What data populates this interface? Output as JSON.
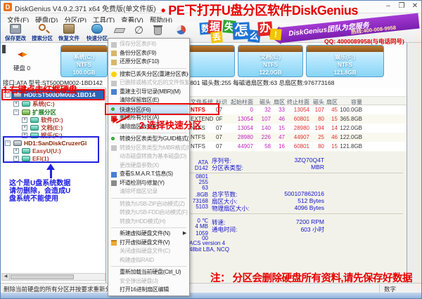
{
  "window": {
    "icon_letter": "D",
    "title": "DiskGenius V4.9.2.371 x64 免费版(单文件版)",
    "top_annotation": "• PE下打开U盘分区软件DiskGenius",
    "controls": {
      "minimize": "–",
      "maximize": "❐",
      "close": "✕"
    }
  },
  "menubar": {
    "items": [
      "文件(F)",
      "硬盘(D)",
      "分区(P)",
      "工具(T)",
      "查看(V)",
      "帮助(H)"
    ]
  },
  "toolbar": {
    "buttons": [
      "保存更改",
      "搜索分区",
      "恢复文件",
      "快速分区"
    ],
    "ad": {
      "tiles": [
        "数",
        "据",
        "丢",
        "失",
        "怎",
        "么",
        "办",
        "!"
      ],
      "banner": "DiskGenius团队为您服务",
      "hotline": "热线:400-008-9958",
      "qq": "QQ: 4000089958(与电话同号)"
    }
  },
  "diskbar": {
    "nav_left": "◀",
    "nav_right": "▶",
    "disk_label": "硬盘 0",
    "partitions": [
      {
        "name": "系统(C:)",
        "fs": "NTFS",
        "size": "100.0GB"
      },
      {
        "name": "软件(D:)",
        "fs": "NTFS",
        "size": "122.0GB"
      },
      {
        "name": "文档(E:)",
        "fs": "NTFS",
        "size": "122.0GB"
      },
      {
        "name": "娱乐(F:)",
        "fs": "NTFS",
        "size": "121.8GB"
      }
    ]
  },
  "info_line": {
    "left": "接口:ATA   型号:ST500DM002-1BD142",
    "right": "柱面数:60801   磁头数:255   每磁道扇区数:63   总扇区数:976773168"
  },
  "annotations": {
    "step1": "1.右键点击红框硬盘",
    "step2": "2.选择快速分区",
    "bottom_note": "注： 分区会删除硬盘所有资料,请先保存好数据",
    "usb_note": [
      "这个是U盘系统数据",
      "请勿删除，会造成U",
      "盘系统不能使用"
    ]
  },
  "tree": {
    "items": [
      {
        "label": "HD0:ST500DM002-1BD14",
        "type": "disk",
        "expander": "−",
        "indent": 0,
        "selected": true
      },
      {
        "label": "系统(C:)",
        "type": "partition",
        "expander": "+",
        "indent": 1,
        "color": "red"
      },
      {
        "label": "扩展分区",
        "type": "extended",
        "expander": "−",
        "indent": 1,
        "color": "green"
      },
      {
        "label": "软件(D:)",
        "type": "partition",
        "expander": "+",
        "indent": 2,
        "color": "red"
      },
      {
        "label": "文档(E:)",
        "type": "partition",
        "expander": "+",
        "indent": 2,
        "color": "red"
      },
      {
        "label": "娱乐(F:)",
        "type": "partition",
        "expander": "+",
        "indent": 2,
        "color": "red"
      },
      {
        "label": "HD1:SanDiskCruzerGl",
        "type": "disk",
        "expander": "−",
        "indent": 0,
        "color": "dred"
      },
      {
        "label": "EasyU(U:)",
        "type": "partition",
        "expander": "+",
        "indent": 1,
        "color": "red"
      },
      {
        "label": "EFI(1)",
        "type": "partition",
        "expander": "+",
        "indent": 1,
        "color": "red"
      }
    ]
  },
  "context_menu": {
    "items": [
      {
        "label": "保存分区表(F8)",
        "disabled": true,
        "icon": "gray"
      },
      {
        "label": "备份分区表(F9)",
        "icon": "tan"
      },
      {
        "label": "还原分区表(F10)",
        "icon": "tan"
      },
      {
        "sep": true
      },
      {
        "label": "搜索已丢失分区(重建分区表)(L)",
        "icon": "lamp"
      },
      {
        "label": "已删除或格式化后的文件恢复(U)",
        "disabled": true,
        "icon": "gray"
      },
      {
        "label": "重建主引导记录(MBR)(M)",
        "icon": "blue"
      },
      {
        "label": "清除保留扇区(E)"
      },
      {
        "label": "快速分区(F6)",
        "highlight": true,
        "icon": "greenring"
      },
      {
        "label": "删除所有分区(A)",
        "icon": "red"
      },
      {
        "label": "清除扇区数据(E)"
      },
      {
        "sep": true
      },
      {
        "label": "转换分区表类型为GUID格式(P)",
        "icon": "greenring"
      },
      {
        "label": "转换分区表类型为MBR格式(B)",
        "disabled": true,
        "icon": "gray"
      },
      {
        "label": "动态磁盘转换为基本磁盘(D)",
        "disabled": true
      },
      {
        "label": "更改硬盘参数(X)",
        "disabled": true
      },
      {
        "label": "查看S.M.A.R.T.信息(S)",
        "icon": "blue"
      },
      {
        "label": "坏道检测与修复(Y)",
        "icon": "tools"
      },
      {
        "label": "清除坏扇区记录",
        "disabled": true
      },
      {
        "sep": true
      },
      {
        "label": "转换为USB-ZIP启动模式(Z)",
        "disabled": true
      },
      {
        "label": "转换为USB-FDD启动模式(F)",
        "disabled": true
      },
      {
        "label": "转换为HDD模式(H)",
        "disabled": true
      },
      {
        "sep": true
      },
      {
        "label": "新建虚拟硬盘文件(N)",
        "submenu": true
      },
      {
        "label": "打开虚拟硬盘文件(V)",
        "icon": "folder"
      },
      {
        "label": "关闭虚拟硬盘文件(C)",
        "disabled": true
      },
      {
        "label": "构建虚拟RAID",
        "disabled": true
      },
      {
        "sep": true
      },
      {
        "label": "重新加载当前硬盘(Ctrl_U)"
      },
      {
        "label": "安全弹出硬盘(J)",
        "disabled": true
      },
      {
        "label": "打开16进制扇区编辑"
      }
    ]
  },
  "partition_table": {
    "headers": [
      "文件系统",
      "标识",
      "起始柱面",
      "磁头",
      "扇区",
      "终止柱面",
      "磁头",
      "扇区",
      "容量"
    ],
    "rows": [
      [
        "NTFS",
        "07",
        "0",
        "32",
        "33",
        "13054",
        "107",
        "45",
        "100.0GB"
      ],
      [
        "EXTEND",
        "0F",
        "13054",
        "107",
        "46",
        "60801",
        "80",
        "15",
        "365.8GB"
      ],
      [
        "NTFS",
        "07",
        "13054",
        "140",
        "15",
        "28980",
        "194",
        "14",
        "122.0GB"
      ],
      [
        "NTFS",
        "07",
        "28980",
        "226",
        "47",
        "44907",
        "25",
        "46",
        "122.0GB"
      ],
      [
        "NTFS",
        "07",
        "44907",
        "58",
        "16",
        "60801",
        "80",
        "15",
        "121.8GB"
      ]
    ]
  },
  "details": {
    "pairs": [
      {
        "label": "序列号:",
        "value": "3ZQ70Q4T"
      },
      {
        "label": "分区表类型:",
        "value": "MBR"
      },
      {
        "label": "总字节数:",
        "value": "500107862016"
      },
      {
        "label": "扇区大小:",
        "value": "512 Bytes"
      },
      {
        "label": "物理扇区大小:",
        "value": "4096 Bytes"
      },
      {
        "label": "转速:",
        "value": "7200 RPM"
      },
      {
        "label": "通电时间:",
        "value": "603 小时"
      }
    ],
    "fragments": [
      "ATA",
      "D142",
      "0801",
      "255",
      "63",
      ".8GB",
      "73168",
      "5103",
      "0 ℃",
      "4 MB",
      "1059",
      "00"
    ],
    "fragments_wide": [
      "ACS version 4",
      "48bit LBA, NCQ"
    ]
  },
  "statusbar": {
    "left": "删除当前硬盘的所有分区并按要求重新分区",
    "right": "数字"
  }
}
